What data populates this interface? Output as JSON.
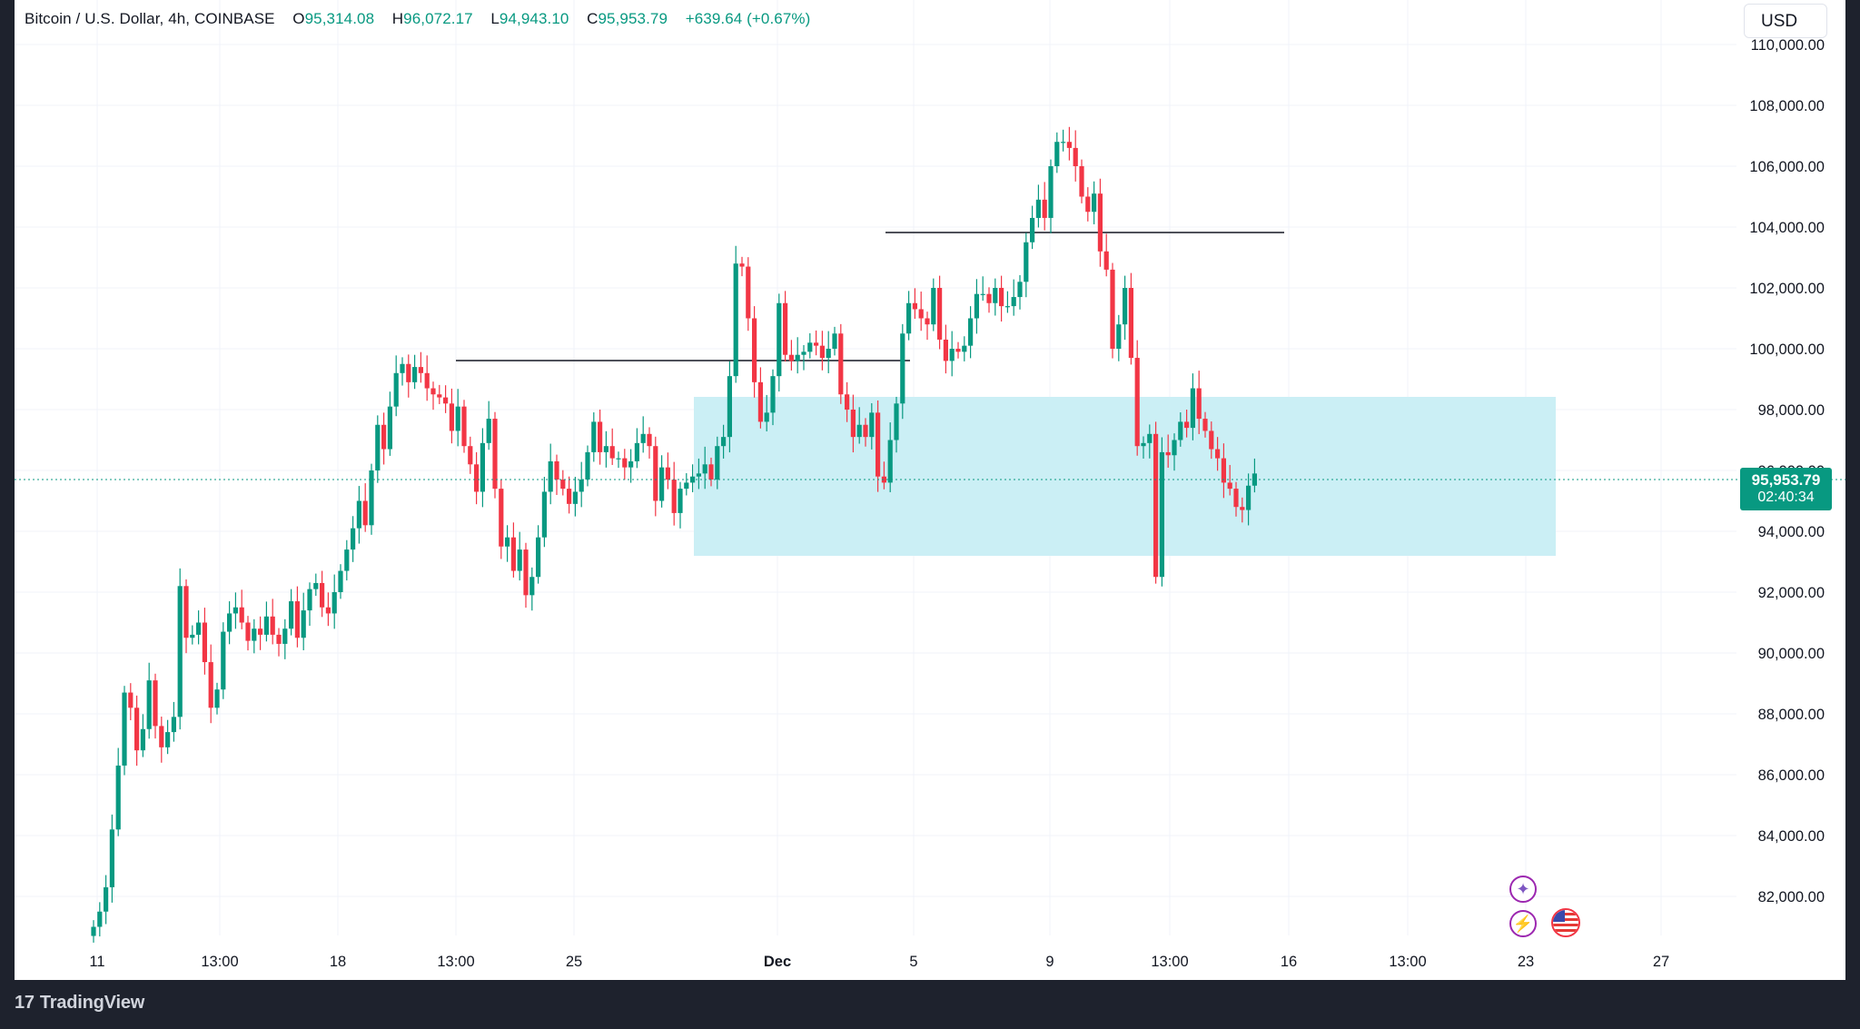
{
  "legend": {
    "symbol": "Bitcoin / U.S. Dollar, 4h, COINBASE",
    "o_label": "O",
    "o_value": "95,314.08",
    "h_label": "H",
    "h_value": "96,072.17",
    "l_label": "L",
    "l_value": "94,943.10",
    "c_label": "C",
    "c_value": "95,953.79",
    "change": "+639.64 (+0.67%)"
  },
  "currency": "USD",
  "last_price": {
    "price": "95,953.79",
    "countdown": "02:40:34"
  },
  "footer": {
    "brand": "TradingView"
  },
  "icons": [
    "sparkle-event-icon",
    "lightning-event-icon",
    "us-flag-icon",
    "tradingview-logo-icon"
  ],
  "colors": {
    "up": "#089981",
    "down": "#f23645",
    "zone": "#c8eef4",
    "line": "#131722"
  },
  "chart_data": {
    "type": "candlestick",
    "interval": "4h",
    "y_axis_ticks": [
      "82,000.00",
      "84,000.00",
      "86,000.00",
      "88,000.00",
      "90,000.00",
      "92,000.00",
      "94,000.00",
      "96,000.00",
      "98,000.00",
      "100,000.00",
      "102,000.00",
      "104,000.00",
      "106,000.00",
      "108,000.00",
      "110,000.00"
    ],
    "y_tick_values": [
      82000,
      84000,
      86000,
      88000,
      90000,
      92000,
      94000,
      96000,
      98000,
      100000,
      102000,
      104000,
      106000,
      108000,
      110000
    ],
    "ylim": [
      80800,
      111500
    ],
    "x_axis_ticks": [
      {
        "label": "11",
        "bold": false
      },
      {
        "label": "13:00",
        "bold": false
      },
      {
        "label": "18",
        "bold": false
      },
      {
        "label": "13:00",
        "bold": false
      },
      {
        "label": "25",
        "bold": false
      },
      {
        "label": "Dec",
        "bold": true
      },
      {
        "label": "5",
        "bold": false
      },
      {
        "label": "9",
        "bold": false
      },
      {
        "label": "13:00",
        "bold": false
      },
      {
        "label": "16",
        "bold": false
      },
      {
        "label": "13:00",
        "bold": false
      },
      {
        "label": "23",
        "bold": false
      },
      {
        "label": "27",
        "bold": false
      }
    ],
    "closes": [
      81000,
      81500,
      82300,
      84200,
      86300,
      88700,
      88200,
      86800,
      87500,
      89100,
      87600,
      86900,
      87400,
      87900,
      92200,
      90500,
      90600,
      91000,
      89700,
      88200,
      88800,
      90700,
      91300,
      91500,
      91000,
      90400,
      90800,
      90600,
      91200,
      90600,
      90300,
      90800,
      91700,
      90500,
      91400,
      92100,
      92300,
      91500,
      91300,
      92000,
      92700,
      93400,
      94100,
      95000,
      94200,
      96000,
      97500,
      96700,
      98100,
      99200,
      99500,
      98900,
      99400,
      99200,
      98700,
      98500,
      98400,
      98200,
      97300,
      98100,
      96800,
      96200,
      95300,
      96900,
      97700,
      95400,
      93500,
      93800,
      92700,
      93400,
      91900,
      92500,
      93800,
      95300,
      96300,
      95700,
      95400,
      94900,
      95300,
      95700,
      96600,
      97600,
      96600,
      96800,
      96400,
      96400,
      96100,
      96300,
      96900,
      97200,
      96800,
      95000,
      96100,
      95700,
      94600,
      95400,
      95600,
      95800,
      95900,
      96200,
      95700,
      96800,
      97100,
      99100,
      102800,
      102700,
      101000,
      98900,
      97600,
      97900,
      99100,
      101500,
      99800,
      99600,
      99800,
      99900,
      100200,
      100100,
      99700,
      100000,
      100500,
      98500,
      98000,
      97100,
      97500,
      97100,
      97900,
      95800,
      95600,
      97000,
      98200,
      100500,
      101500,
      101300,
      101000,
      100800,
      102000,
      100300,
      99600,
      100000,
      99900,
      100100,
      101000,
      101800,
      101800,
      101500,
      102000,
      101400,
      101400,
      101700,
      102200,
      103500,
      104300,
      104900,
      104300,
      106000,
      106800,
      106800,
      106600,
      106000,
      105000,
      104500,
      105100,
      103200,
      102600,
      100000,
      100800,
      102000,
      99700,
      96800,
      96900,
      97200,
      92500,
      96600,
      96500,
      97000,
      97600,
      97400,
      98700,
      97700,
      97300,
      96700,
      96400,
      95600,
      95400,
      94800,
      94700,
      95500,
      95900
    ]
  }
}
